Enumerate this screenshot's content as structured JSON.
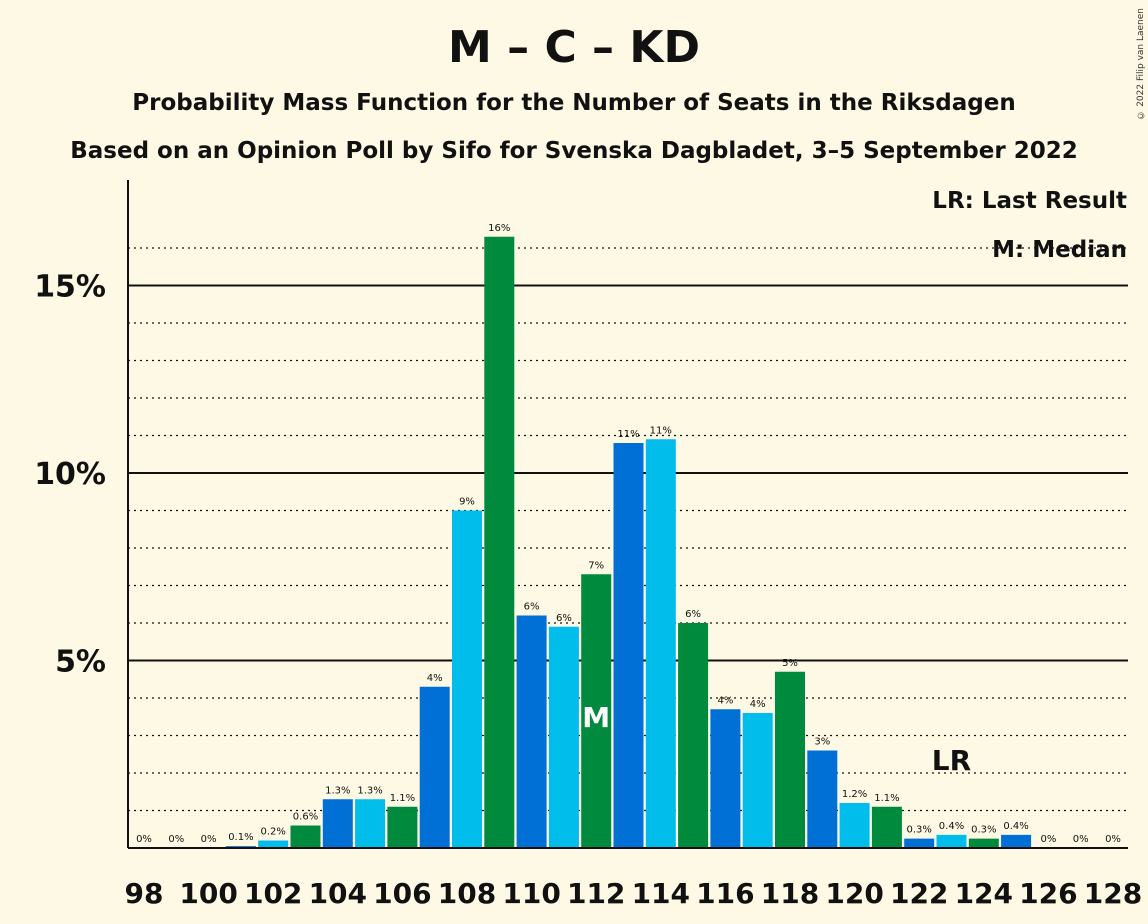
{
  "title": "M – C – KD",
  "subtitle1": "Probability Mass Function for the Number of Seats in the Riksdagen",
  "subtitle2": "Based on an Opinion Poll by Sifo for Svenska Dagbladet, 3–5 September 2022",
  "copyright": "© 2022 Filip van Laenen",
  "legend": {
    "last_result": "LR: Last Result",
    "median": "M: Median"
  },
  "colors": {
    "background": "#fef9e4",
    "blue": "#006fd6",
    "lightblue": "#00bdec",
    "green": "#008a3e"
  },
  "chart_data": {
    "type": "bar",
    "x": [
      98,
      99,
      100,
      101,
      102,
      103,
      104,
      105,
      106,
      107,
      108,
      109,
      110,
      111,
      112,
      113,
      114,
      115,
      116,
      117,
      118,
      119,
      120,
      121,
      122,
      123,
      124,
      125,
      126,
      127,
      128
    ],
    "values": [
      0,
      0,
      0,
      0.05,
      0.2,
      0.6,
      1.3,
      1.3,
      1.1,
      4.3,
      9.0,
      16.3,
      6.2,
      5.9,
      7.3,
      10.8,
      10.9,
      6.0,
      3.7,
      3.6,
      4.7,
      2.6,
      1.2,
      1.1,
      0.25,
      0.35,
      0.25,
      0.35,
      0,
      0,
      0
    ],
    "data_labels": [
      "0%",
      "0%",
      "0%",
      "0.1%",
      "0.2%",
      "0.6%",
      "1.3%",
      "1.3%",
      "1.1%",
      "4%",
      "9%",
      "16%",
      "6%",
      "6%",
      "7%",
      "11%",
      "11%",
      "6%",
      "4%",
      "4%",
      "5%",
      "3%",
      "1.2%",
      "1.1%",
      "0.3%",
      "0.4%",
      "0.3%",
      "0.4%",
      "0%",
      "0%",
      "0%"
    ],
    "bar_colors": [
      "blue",
      "lightblue",
      "green",
      "blue",
      "lightblue",
      "green",
      "blue",
      "lightblue",
      "green",
      "blue",
      "lightblue",
      "green",
      "blue",
      "lightblue",
      "green",
      "blue",
      "lightblue",
      "green",
      "blue",
      "lightblue",
      "green",
      "blue",
      "lightblue",
      "green",
      "blue",
      "lightblue",
      "green",
      "blue",
      "lightblue",
      "green",
      "blue"
    ],
    "x_tick_labels": [
      "98",
      "100",
      "102",
      "104",
      "106",
      "108",
      "110",
      "112",
      "114",
      "116",
      "118",
      "120",
      "122",
      "124",
      "126",
      "128"
    ],
    "y_tick_labels": [
      "5%",
      "10%",
      "15%"
    ],
    "ylim": [
      0,
      17.7
    ],
    "y_major_gridlines": [
      5,
      10,
      15
    ],
    "y_minor_gridlines": [
      1,
      2,
      3,
      4,
      6,
      7,
      8,
      9,
      11,
      12,
      13,
      14,
      16
    ],
    "median_seat": 112,
    "median_marker": "M",
    "last_result_seat": 123,
    "last_result_marker": "LR",
    "legend_position": "top-right"
  }
}
